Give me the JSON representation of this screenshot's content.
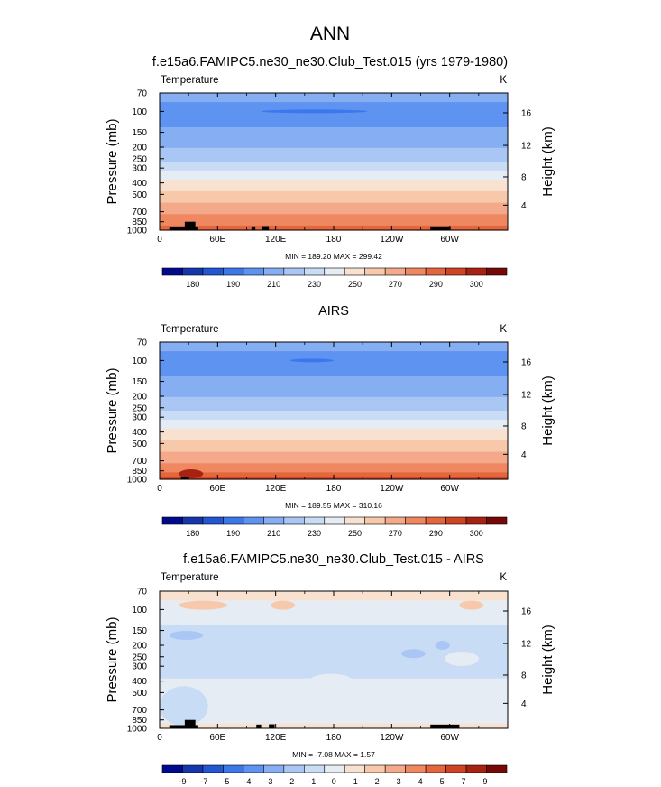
{
  "figure": {
    "title": "ANN",
    "theme": "ncl-zonal-cross-section",
    "colors": {
      "background": "#ffffff",
      "text": "#000000",
      "land": "#000000"
    }
  },
  "chart_data": [
    {
      "type": "heatmap",
      "id": "model",
      "title": "f.e15a6.FAMIPC5.ne30_ne30.Club_Test.015 (yrs 1979-1980)",
      "variable": "Temperature",
      "units": "K",
      "ylabel": "Pressure (mb)",
      "ylabel_right": "Height (km)",
      "x_ticks": [
        "0",
        "60E",
        "120E",
        "180",
        "120W",
        "60W"
      ],
      "x_tick_values": [
        0,
        60,
        120,
        180,
        240,
        300
      ],
      "xlim": [
        0,
        360
      ],
      "p_ticks": [
        70,
        100,
        150,
        200,
        250,
        300,
        400,
        500,
        700,
        850,
        1000
      ],
      "plim": [
        70,
        1000
      ],
      "height_ticks": [
        4,
        8,
        12,
        16
      ],
      "stats": "MIN = 189.20  MAX = 299.42",
      "min": 189.2,
      "max": 299.42,
      "levels": [
        180,
        185,
        190,
        200,
        210,
        220,
        230,
        240,
        250,
        260,
        270,
        280,
        290,
        295,
        300
      ],
      "colorbar_labels": [
        "180",
        "190",
        "210",
        "230",
        "250",
        "270",
        "290",
        "300"
      ],
      "colorbar_colors": [
        "#000a8f",
        "#1438ac",
        "#2356d4",
        "#3c77ec",
        "#5e93f1",
        "#86aff3",
        "#a9c6f5",
        "#c9dcf6",
        "#e6ecf4",
        "#f8e2cf",
        "#f7c8a9",
        "#f4a98a",
        "#ef8761",
        "#e4663d",
        "#cf4425",
        "#a82212",
        "#770808"
      ],
      "profile": [
        {
          "p": 70,
          "v": 213
        },
        {
          "p": 100,
          "v": 207
        },
        {
          "p": 130,
          "v": 209
        },
        {
          "p": 150,
          "v": 212
        },
        {
          "p": 200,
          "v": 219
        },
        {
          "p": 250,
          "v": 228
        },
        {
          "p": 300,
          "v": 237
        },
        {
          "p": 400,
          "v": 252
        },
        {
          "p": 500,
          "v": 262
        },
        {
          "p": 700,
          "v": 277
        },
        {
          "p": 850,
          "v": 286
        },
        {
          "p": 1000,
          "v": 295
        }
      ],
      "features": [
        {
          "kind": "cold-tongue",
          "lon_range": [
            105,
            215
          ],
          "p": 100,
          "v": 190
        }
      ],
      "land_blocks": [
        {
          "lon": [
            10,
            40
          ],
          "p_top": 940
        },
        {
          "lon": [
            26,
            37
          ],
          "p_top": 850
        },
        {
          "lon": [
            95,
            99
          ],
          "p_top": 930
        },
        {
          "lon": [
            106,
            113
          ],
          "p_top": 925
        },
        {
          "lon": [
            280,
            301
          ],
          "p_top": 930
        }
      ]
    },
    {
      "type": "heatmap",
      "id": "obs",
      "title": "AIRS",
      "variable": "Temperature",
      "units": "K",
      "ylabel": "Pressure (mb)",
      "ylabel_right": "Height (km)",
      "x_ticks": [
        "0",
        "60E",
        "120E",
        "180",
        "120W",
        "60W"
      ],
      "x_tick_values": [
        0,
        60,
        120,
        180,
        240,
        300
      ],
      "xlim": [
        0,
        360
      ],
      "p_ticks": [
        70,
        100,
        150,
        200,
        250,
        300,
        400,
        500,
        700,
        850,
        1000
      ],
      "plim": [
        70,
        1000
      ],
      "height_ticks": [
        4,
        8,
        12,
        16
      ],
      "stats": "MIN = 189.55  MAX = 310.16",
      "min": 189.55,
      "max": 310.16,
      "levels": [
        180,
        185,
        190,
        200,
        210,
        220,
        230,
        240,
        250,
        260,
        270,
        280,
        290,
        295,
        300
      ],
      "colorbar_labels": [
        "180",
        "190",
        "210",
        "230",
        "250",
        "270",
        "290",
        "300"
      ],
      "colorbar_colors": [
        "#000a8f",
        "#1438ac",
        "#2356d4",
        "#3c77ec",
        "#5e93f1",
        "#86aff3",
        "#a9c6f5",
        "#c9dcf6",
        "#e6ecf4",
        "#f8e2cf",
        "#f7c8a9",
        "#f4a98a",
        "#ef8761",
        "#e4663d",
        "#cf4425",
        "#a82212",
        "#770808"
      ],
      "profile": [
        {
          "p": 70,
          "v": 213
        },
        {
          "p": 100,
          "v": 207
        },
        {
          "p": 130,
          "v": 209
        },
        {
          "p": 150,
          "v": 212
        },
        {
          "p": 200,
          "v": 219
        },
        {
          "p": 250,
          "v": 228
        },
        {
          "p": 300,
          "v": 237
        },
        {
          "p": 400,
          "v": 252
        },
        {
          "p": 500,
          "v": 262
        },
        {
          "p": 700,
          "v": 278
        },
        {
          "p": 850,
          "v": 287
        },
        {
          "p": 1000,
          "v": 297
        }
      ],
      "features": [
        {
          "kind": "cold-tongue",
          "lon_range": [
            135,
            180
          ],
          "p": 100,
          "v": 190
        },
        {
          "kind": "hot-spot",
          "lon_range": [
            20,
            45
          ],
          "p": 900,
          "v": 303
        }
      ],
      "land_blocks": [
        {
          "lon": [
            22,
            30
          ],
          "p_top": 960
        }
      ]
    },
    {
      "type": "heatmap",
      "id": "diff",
      "title": "f.e15a6.FAMIPC5.ne30_ne30.Club_Test.015 - AIRS",
      "variable": "Temperature",
      "units": "K",
      "ylabel": "Pressure (mb)",
      "ylabel_right": "Height (km)",
      "x_ticks": [
        "0",
        "60E",
        "120E",
        "180",
        "120W",
        "60W"
      ],
      "x_tick_values": [
        0,
        60,
        120,
        180,
        240,
        300
      ],
      "xlim": [
        0,
        360
      ],
      "p_ticks": [
        70,
        100,
        150,
        200,
        250,
        300,
        400,
        500,
        700,
        850,
        1000
      ],
      "plim": [
        70,
        1000
      ],
      "height_ticks": [
        4,
        8,
        12,
        16
      ],
      "stats": "MIN = -7.08  MAX =  1.57",
      "min": -7.08,
      "max": 1.57,
      "levels": [
        -9,
        -8,
        -7,
        -6,
        -5,
        -4,
        -3,
        -2,
        -1,
        0,
        1,
        2,
        3,
        4,
        5,
        6,
        7,
        9
      ],
      "colorbar_labels": [
        "-9",
        "-7",
        "-5",
        "-4",
        "-3",
        "-2",
        "-1",
        "0",
        "1",
        "2",
        "3",
        "4",
        "5",
        "7",
        "9"
      ],
      "colorbar_colors": [
        "#000a8f",
        "#1438ac",
        "#2356d4",
        "#3c77ec",
        "#5e93f1",
        "#86aff3",
        "#a9c6f5",
        "#c9dcf6",
        "#e6ecf4",
        "#f8e2cf",
        "#f7c8a9",
        "#f4a98a",
        "#ef8761",
        "#e4663d",
        "#cf4425",
        "#a82212",
        "#770808"
      ],
      "bands": [
        {
          "p_top": 70,
          "p_bot": 84,
          "v": -0.8
        },
        {
          "p_top": 84,
          "p_bot": 95,
          "v": -1.5
        },
        {
          "p_top": 95,
          "p_bot": 110,
          "v": -1.3
        },
        {
          "p_top": 110,
          "p_bot": 135,
          "v": -1.5
        },
        {
          "p_top": 135,
          "p_bot": 240,
          "v": -2.4
        },
        {
          "p_top": 240,
          "p_bot": 380,
          "v": -2.2
        },
        {
          "p_top": 380,
          "p_bot": 520,
          "v": -1.6
        },
        {
          "p_top": 520,
          "p_bot": 640,
          "v": -1.3
        },
        {
          "p_top": 640,
          "p_bot": 790,
          "v": -1.6
        },
        {
          "p_top": 790,
          "p_bot": 910,
          "v": -1.4
        },
        {
          "p_top": 910,
          "p_bot": 1000,
          "v": -0.7
        }
      ],
      "features": [
        {
          "kind": "warm-patch",
          "lon_range": [
            20,
            70
          ],
          "p": 92,
          "v": 0.5
        },
        {
          "kind": "warm-patch",
          "lon_range": [
            115,
            140
          ],
          "p": 92,
          "v": 0.3
        },
        {
          "kind": "warm-patch",
          "lon_range": [
            310,
            335
          ],
          "p": 92,
          "v": 0.5
        },
        {
          "kind": "cold-patch",
          "lon_range": [
            10,
            45
          ],
          "p": 165,
          "v": -3.3
        },
        {
          "kind": "cold-patch",
          "lon_range": [
            250,
            275
          ],
          "p": 235,
          "v": -3.5
        },
        {
          "kind": "cold-patch",
          "lon_range": [
            285,
            300
          ],
          "p": 200,
          "v": -3.2
        },
        {
          "kind": "light-patch",
          "lon_range": [
            155,
            200
          ],
          "p": 400,
          "v": -1.2
        },
        {
          "kind": "light-patch",
          "lon_range": [
            295,
            330
          ],
          "p": 260,
          "v": -1.3
        },
        {
          "kind": "deep-patch",
          "lon_range": [
            0,
            50
          ],
          "p": 650,
          "v": -2.4
        }
      ],
      "land_blocks": [
        {
          "lon": [
            10,
            40
          ],
          "p_top": 940
        },
        {
          "lon": [
            26,
            37
          ],
          "p_top": 850
        },
        {
          "lon": [
            100,
            105
          ],
          "p_top": 930
        },
        {
          "lon": [
            113,
            119
          ],
          "p_top": 925
        },
        {
          "lon": [
            280,
            310
          ],
          "p_top": 930
        }
      ]
    }
  ]
}
